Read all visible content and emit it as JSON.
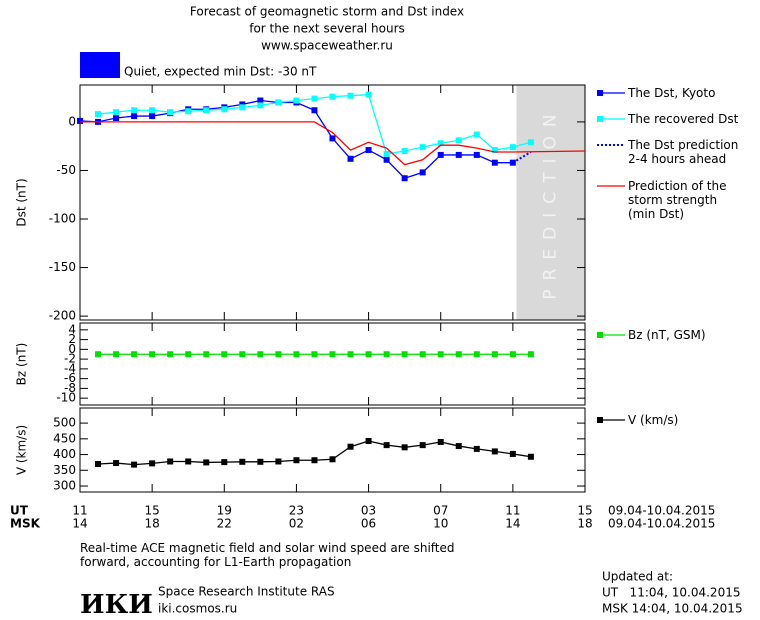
{
  "header": {
    "lines": [
      "Forecast of geomagnetic storm and Dst index",
      "for the next several hours",
      "www.spaceweather.ru"
    ]
  },
  "status": {
    "text": "Quiet, expected min Dst: -30 nT",
    "color": "#0000ff"
  },
  "time_axis": {
    "ut_label": "UT",
    "msk_label": "MSK",
    "date_range": "09.04-10.04.2015"
  },
  "chart_data": [
    {
      "type": "line",
      "y_label": "Dst (nT)",
      "xlim": [
        0,
        28
      ],
      "ylim": [
        -204,
        38
      ],
      "yticks": [
        0,
        -50,
        -100,
        -150,
        -200
      ],
      "shade": {
        "start": 24.2,
        "label": "PREDICTION"
      },
      "series": [
        {
          "name": "The Dst, Kyoto",
          "color": "#0000ff",
          "marker": "square",
          "x": [
            0,
            1,
            2,
            3,
            4,
            5,
            6,
            7,
            8,
            9,
            10,
            11,
            12,
            13,
            14,
            15,
            16,
            17,
            18,
            19,
            20,
            21,
            22,
            23,
            24
          ],
          "values": [
            1,
            0,
            4,
            6,
            6,
            9,
            13,
            13,
            15,
            18,
            22,
            20,
            20,
            12,
            -17,
            -38,
            -29,
            -39,
            -58,
            -52,
            -34,
            -34,
            -34,
            -42,
            -42
          ]
        },
        {
          "name": "The recovered Dst",
          "color": "#00ffff",
          "marker": "square",
          "x": [
            1,
            2,
            3,
            4,
            5,
            6,
            7,
            8,
            9,
            10,
            11,
            12,
            13,
            14,
            15,
            16,
            17,
            18,
            19,
            20,
            21,
            22,
            23,
            24,
            25
          ],
          "values": [
            8,
            10,
            12,
            12,
            10,
            11,
            12,
            13,
            15,
            17,
            20,
            22,
            24,
            26,
            27,
            28,
            -33,
            -30,
            -26,
            -22,
            -19,
            -13,
            -29,
            -26,
            -21
          ]
        },
        {
          "name": "The Dst prediction\n2-4 hours ahead",
          "color": "#0000ff",
          "dash": true,
          "x": [
            24,
            25
          ],
          "values": [
            -42,
            -31
          ]
        },
        {
          "name": "Prediction of the\nstorm strength\n(min Dst)",
          "color": "#ff0000",
          "x": [
            0,
            13,
            14,
            15,
            16,
            17,
            18,
            19,
            20,
            21,
            22,
            23,
            24,
            28
          ],
          "values": [
            0,
            0,
            -11,
            -29,
            -21,
            -27,
            -44,
            -39,
            -24,
            -24,
            -27,
            -31,
            -31,
            -30
          ]
        }
      ]
    },
    {
      "type": "line",
      "y_label": "Bz (nT)",
      "xlim": [
        0,
        28
      ],
      "ylim": [
        -11.4,
        5.4
      ],
      "yticks": [
        4,
        2,
        0,
        -2,
        -4,
        -6,
        -8,
        -10
      ],
      "series": [
        {
          "name": "Bz (nT, GSM)",
          "color": "#00e000",
          "marker": "square",
          "x": [
            1,
            2,
            3,
            4,
            5,
            6,
            7,
            8,
            9,
            10,
            11,
            12,
            13,
            14,
            15,
            16,
            17,
            18,
            19,
            20,
            21,
            22,
            23,
            24,
            25
          ],
          "values": [
            -1,
            -1,
            -1,
            -1,
            -1,
            -1,
            -1,
            -1,
            -1,
            -1,
            -1,
            -1,
            -1,
            -1,
            -1,
            -1,
            -1,
            -1,
            -1,
            -1,
            -1,
            -1,
            -1,
            -1,
            -1
          ]
        }
      ]
    },
    {
      "type": "line",
      "y_label": "V (km/s)",
      "xlim": [
        0,
        28
      ],
      "ylim": [
        281,
        548
      ],
      "yticks": [
        500,
        450,
        400,
        350,
        300
      ],
      "xticks": [
        {
          "value": 0,
          "label": "11"
        },
        {
          "value": 4,
          "label": "15"
        },
        {
          "value": 8,
          "label": "19"
        },
        {
          "value": 12,
          "label": "23"
        },
        {
          "value": 16,
          "label": "03"
        },
        {
          "value": 20,
          "label": "07"
        },
        {
          "value": 24,
          "label": "11"
        },
        {
          "value": 28,
          "label": "15"
        }
      ],
      "xticks_msk": [
        "14",
        "18",
        "22",
        "02",
        "06",
        "10",
        "14",
        "18"
      ],
      "series": [
        {
          "name": "V (km/s)",
          "color": "#000000",
          "marker": "square",
          "x": [
            1,
            2,
            3,
            4,
            5,
            6,
            7,
            8,
            9,
            10,
            11,
            12,
            13,
            14,
            15,
            16,
            17,
            18,
            19,
            20,
            21,
            22,
            23,
            24,
            25
          ],
          "values": [
            370,
            373,
            368,
            372,
            378,
            378,
            375,
            376,
            377,
            377,
            378,
            382,
            382,
            385,
            425,
            443,
            430,
            423,
            430,
            440,
            427,
            418,
            410,
            402,
            393
          ]
        }
      ]
    }
  ],
  "note": "Real-time ACE magnetic field and solar wind speed are shifted\nforward, accounting for L1-Earth propagation",
  "institute": {
    "logo": "ИКИ",
    "name": "Space Research Institute RAS",
    "url": "iki.cosmos.ru"
  },
  "updated": {
    "title": "Updated at:",
    "ut": "UT   11:04, 10.04.2015",
    "msk": "MSK 14:04, 10.04.2015"
  }
}
